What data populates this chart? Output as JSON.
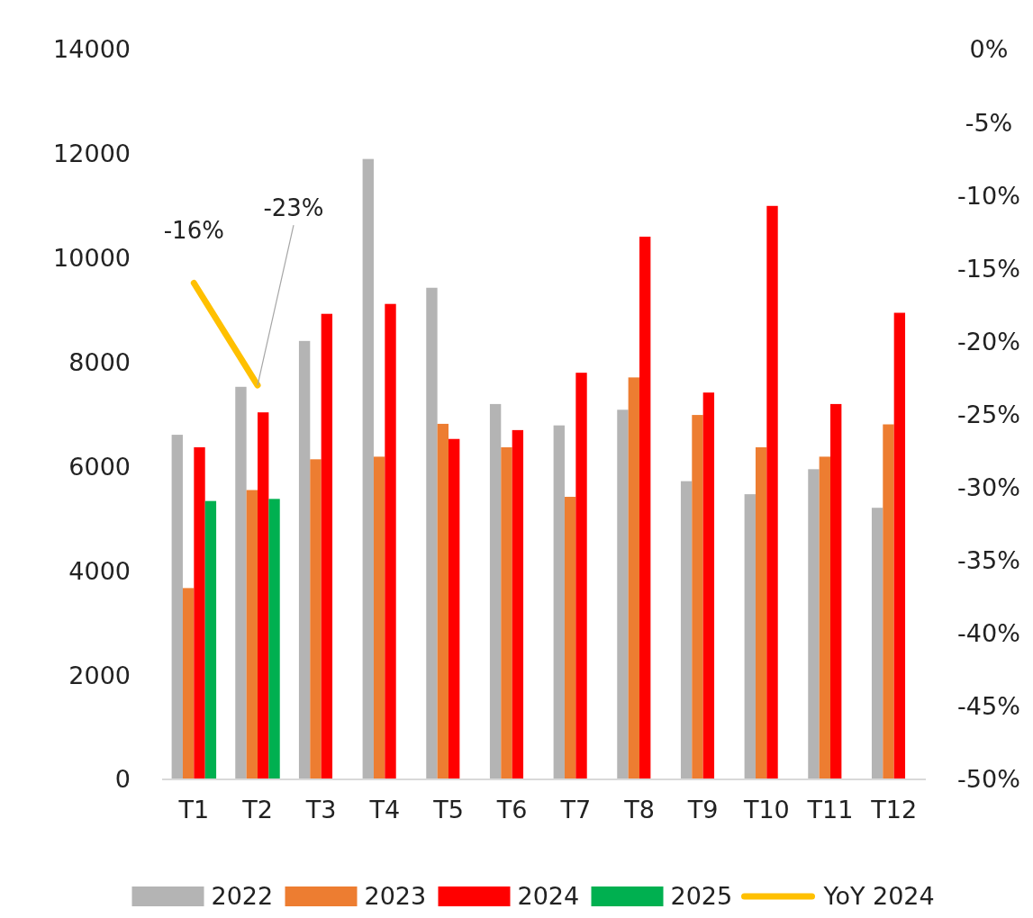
{
  "chart_data": {
    "type": "bar",
    "categories": [
      "T1",
      "T2",
      "T3",
      "T4",
      "T5",
      "T6",
      "T7",
      "T8",
      "T9",
      "T10",
      "T11",
      "T12"
    ],
    "series": [
      {
        "name": "2022",
        "color": "#b4b4b4",
        "values": [
          6610,
          7530,
          8410,
          11900,
          9430,
          7200,
          6790,
          7090,
          5720,
          5470,
          5950,
          5210
        ]
      },
      {
        "name": "2023",
        "color": "#ed7d31",
        "values": [
          3670,
          5550,
          6140,
          6190,
          6820,
          6370,
          5420,
          7710,
          6990,
          6370,
          6190,
          6810
        ]
      },
      {
        "name": "2024",
        "color": "#ff0000",
        "values": [
          6370,
          7040,
          8930,
          9120,
          6530,
          6700,
          7800,
          10410,
          7420,
          11000,
          7200,
          8950
        ]
      },
      {
        "name": "2025",
        "color": "#00b050",
        "values": [
          5340,
          5380,
          null,
          null,
          null,
          null,
          null,
          null,
          null,
          null,
          null,
          null
        ]
      },
      {
        "name": "YoY 2024",
        "type": "line",
        "axis": "y2",
        "color": "#ffc000",
        "values": [
          -16,
          -23,
          null,
          null,
          null,
          null,
          null,
          null,
          null,
          null,
          null,
          null
        ],
        "value_labels": [
          "-16%",
          "-23%",
          null,
          null,
          null,
          null,
          null,
          null,
          null,
          null,
          null,
          null
        ]
      }
    ],
    "ylim": [
      0,
      14000
    ],
    "yticks": [
      0,
      2000,
      4000,
      6000,
      8000,
      10000,
      12000,
      14000
    ],
    "y2lim": [
      -50,
      0
    ],
    "y2ticks": [
      {
        "value": 0,
        "label": "0%"
      },
      {
        "value": -5,
        "label": "-5%"
      },
      {
        "value": -10,
        "label": "-10%"
      },
      {
        "value": -15,
        "label": "-15%"
      },
      {
        "value": -20,
        "label": "-20%"
      },
      {
        "value": -25,
        "label": "-25%"
      },
      {
        "value": -30,
        "label": "-30%"
      },
      {
        "value": -35,
        "label": "-35%"
      },
      {
        "value": -40,
        "label": "-40%"
      },
      {
        "value": -45,
        "label": "-45%"
      },
      {
        "value": -50,
        "label": "-50%"
      }
    ],
    "grid": false,
    "legend": "bottom"
  }
}
